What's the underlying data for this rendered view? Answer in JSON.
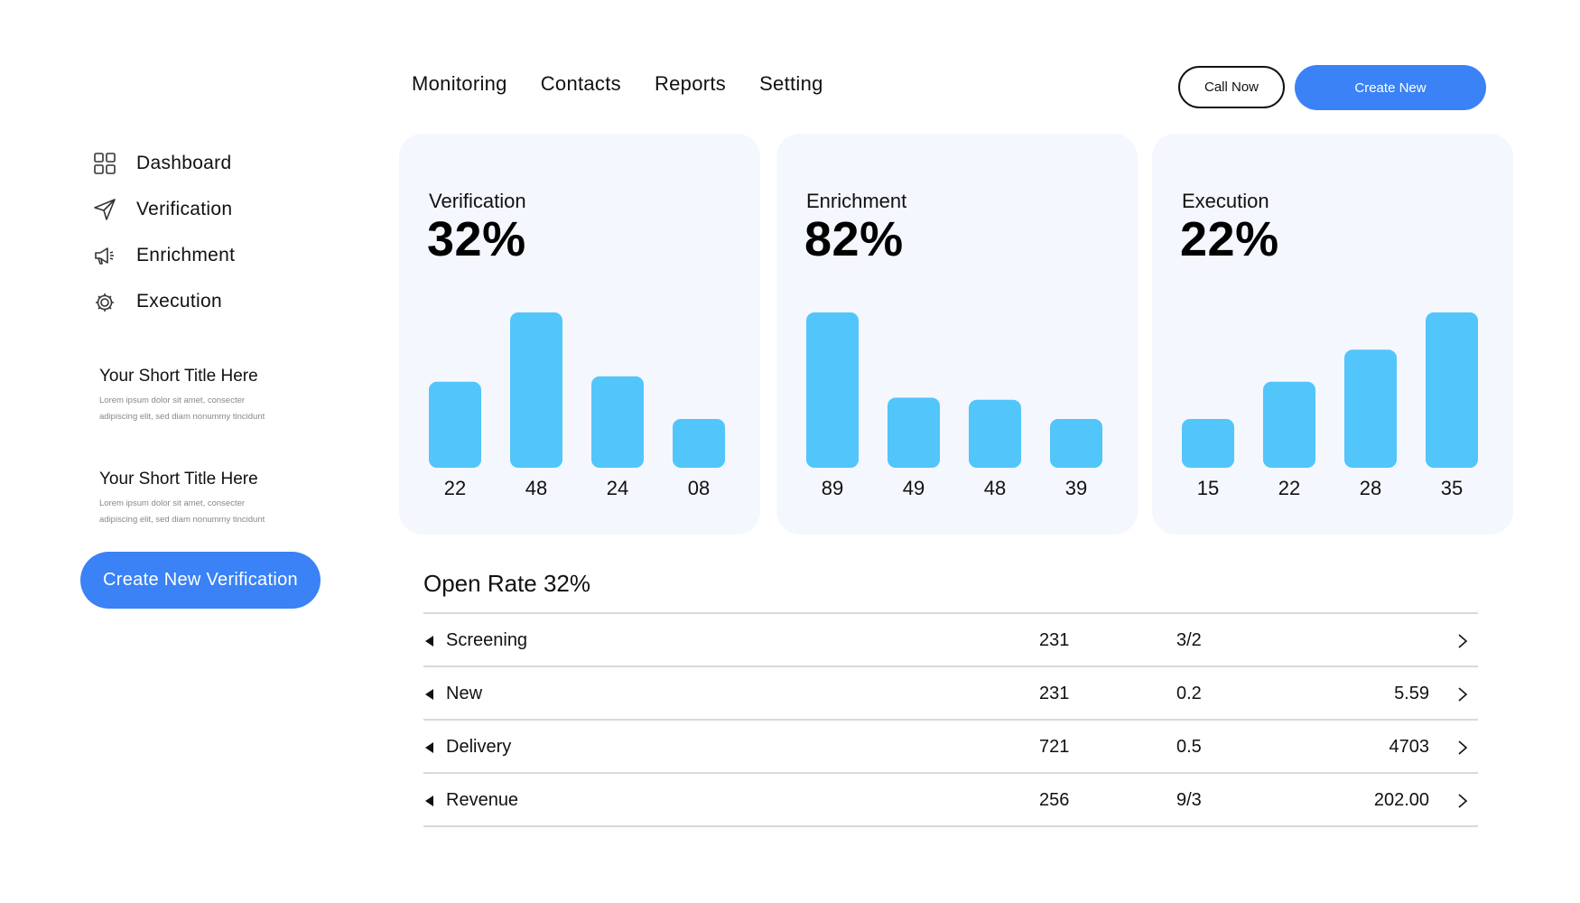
{
  "header": {
    "nav": [
      "Monitoring",
      "Contacts",
      "Reports",
      "Setting"
    ],
    "call_label": "Call Now",
    "create_label": "Create New"
  },
  "sidebar": {
    "items": [
      {
        "label": "Dashboard",
        "icon": "grid-icon"
      },
      {
        "label": "Verification",
        "icon": "send-icon"
      },
      {
        "label": "Enrichment",
        "icon": "megaphone-icon"
      },
      {
        "label": "Execution",
        "icon": "gear-icon"
      }
    ],
    "blocks": [
      {
        "title": "Your Short Title Here",
        "desc1": "Lorem ipsum dolor sit amet, consecter",
        "desc2": "adipiscing elit, sed diam nonummy tincidunt"
      },
      {
        "title": "Your Short Title Here",
        "desc1": "Lorem ipsum dolor sit amet, consecter",
        "desc2": "adipiscing elit, sed diam nonummy tincidunt"
      }
    ],
    "cta_label": "Create New Verification"
  },
  "colors": {
    "accent": "#3a82f6",
    "bar": "#52c5fb",
    "card_bg": "#f4f7fd"
  },
  "chart_data": [
    {
      "type": "bar",
      "title": "Verification",
      "value_label": "32%",
      "categories": [
        "22",
        "48",
        "24",
        "08"
      ],
      "values": [
        22,
        48,
        24,
        8
      ]
    },
    {
      "type": "bar",
      "title": "Enrichment",
      "value_label": "82%",
      "categories": [
        "89",
        "49",
        "48",
        "39"
      ],
      "values": [
        89,
        49,
        48,
        39
      ]
    },
    {
      "type": "bar",
      "title": "Execution",
      "value_label": "22%",
      "categories": [
        "15",
        "22",
        "28",
        "35"
      ],
      "values": [
        15,
        22,
        28,
        35
      ]
    }
  ],
  "open_rate": {
    "title": "Open Rate 32%",
    "rows": [
      {
        "name": "Screening",
        "c1": "231",
        "c2": "3/2",
        "c3": ""
      },
      {
        "name": "New",
        "c1": "231",
        "c2": "0.2",
        "c3": "5.59"
      },
      {
        "name": "Delivery",
        "c1": "721",
        "c2": "0.5",
        "c3": "4703"
      },
      {
        "name": "Revenue",
        "c1": "256",
        "c2": "9/3",
        "c3": "202.00"
      }
    ]
  }
}
